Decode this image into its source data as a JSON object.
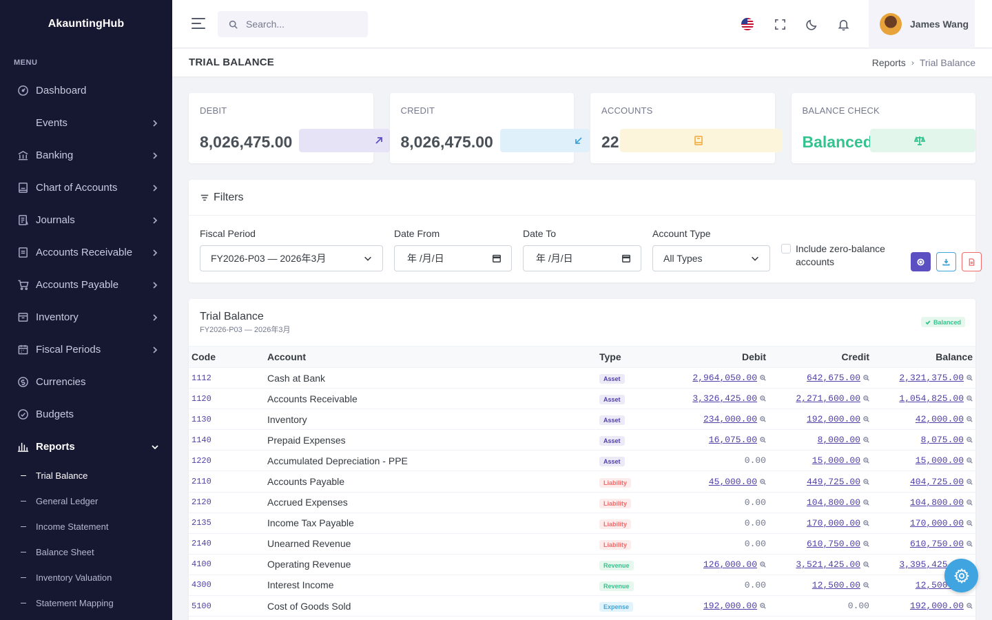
{
  "brand": "AkauntingHub",
  "sidebar": {
    "menu_title": "MENU",
    "items": [
      {
        "label": "Dashboard",
        "icon": "dashboard-icon",
        "has_chevron": false
      },
      {
        "label": "Events",
        "icon": "",
        "has_chevron": true
      },
      {
        "label": "Banking",
        "icon": "bank-icon",
        "has_chevron": true
      },
      {
        "label": "Chart of Accounts",
        "icon": "ledger-icon",
        "has_chevron": true
      },
      {
        "label": "Journals",
        "icon": "journal-icon",
        "has_chevron": true
      },
      {
        "label": "Accounts Receivable",
        "icon": "receivable-icon",
        "has_chevron": true
      },
      {
        "label": "Accounts Payable",
        "icon": "cart-icon",
        "has_chevron": true
      },
      {
        "label": "Inventory",
        "icon": "box-icon",
        "has_chevron": true
      },
      {
        "label": "Fiscal Periods",
        "icon": "calendar-icon",
        "has_chevron": true
      },
      {
        "label": "Currencies",
        "icon": "currency-icon",
        "has_chevron": false
      },
      {
        "label": "Budgets",
        "icon": "budget-icon",
        "has_chevron": false
      },
      {
        "label": "Reports",
        "icon": "bar-chart-icon",
        "has_chevron": true,
        "expanded": true
      }
    ],
    "report_sub_items": [
      "Trial Balance",
      "General Ledger",
      "Income Statement",
      "Balance Sheet",
      "Inventory Valuation",
      "Statement Mapping"
    ],
    "active_sub_item": "Trial Balance"
  },
  "topbar": {
    "search_placeholder": "Search...",
    "user_name": "James Wang",
    "icons": [
      "menu-icon",
      "search-icon",
      "us-flag-icon",
      "fullscreen-icon",
      "moon-icon",
      "bell-icon"
    ]
  },
  "page": {
    "title": "TRIAL BALANCE",
    "breadcrumb": [
      "Reports",
      "Trial Balance"
    ]
  },
  "cards": [
    {
      "label": "DEBIT",
      "value": "8,026,475.00",
      "icon": "arrow-up-right-icon",
      "accent": "#5b4fc2",
      "tint": "#e6e3f7"
    },
    {
      "label": "CREDIT",
      "value": "8,026,475.00",
      "icon": "arrow-down-left-icon",
      "accent": "#3fa4d9",
      "tint": "#e0f0fb"
    },
    {
      "label": "ACCOUNTS",
      "value": "22",
      "icon": "book-icon",
      "accent": "#f1b44c",
      "tint": "#fdf4dc"
    },
    {
      "label": "BALANCE CHECK",
      "value": "Balanced",
      "icon": "scale-icon",
      "accent": "#34c38f",
      "tint": "#e2f6ec"
    }
  ],
  "filters": {
    "title": "Filters",
    "fiscal_period_label": "Fiscal Period",
    "fiscal_period_value": "FY2026-P03 — 2026年3月",
    "date_from_label": "Date From",
    "date_from_value": "年 /月/日",
    "date_to_label": "Date To",
    "date_to_value": "年 /月/日",
    "account_type_label": "Account Type",
    "account_type_value": "All Types",
    "zero_balance_label": "Include zero-balance accounts"
  },
  "trial_balance": {
    "title": "Trial Balance",
    "subtitle": "FY2026-P03 — 2026年3月",
    "badge": "Balanced",
    "columns": [
      "Code",
      "Account",
      "Type",
      "Debit",
      "Credit",
      "Balance"
    ],
    "rows": [
      {
        "code": "1112",
        "account": "Cash at Bank",
        "type": "Asset",
        "debit": "2,964,050.00",
        "credit": "642,675.00",
        "balance": "2,321,375.00"
      },
      {
        "code": "1120",
        "account": "Accounts Receivable",
        "type": "Asset",
        "debit": "3,326,425.00",
        "credit": "2,271,600.00",
        "balance": "1,054,825.00"
      },
      {
        "code": "1130",
        "account": "Inventory",
        "type": "Asset",
        "debit": "234,000.00",
        "credit": "192,000.00",
        "balance": "42,000.00"
      },
      {
        "code": "1140",
        "account": "Prepaid Expenses",
        "type": "Asset",
        "debit": "16,075.00",
        "credit": "8,000.00",
        "balance": "8,075.00"
      },
      {
        "code": "1220",
        "account": "Accumulated Depreciation - PPE",
        "type": "Asset",
        "debit": "0.00",
        "credit": "15,000.00",
        "balance": "15,000.00"
      },
      {
        "code": "2110",
        "account": "Accounts Payable",
        "type": "Liability",
        "debit": "45,000.00",
        "credit": "449,725.00",
        "balance": "404,725.00"
      },
      {
        "code": "2120",
        "account": "Accrued Expenses",
        "type": "Liability",
        "debit": "0.00",
        "credit": "104,800.00",
        "balance": "104,800.00"
      },
      {
        "code": "2135",
        "account": "Income Tax Payable",
        "type": "Liability",
        "debit": "0.00",
        "credit": "170,000.00",
        "balance": "170,000.00"
      },
      {
        "code": "2140",
        "account": "Unearned Revenue",
        "type": "Liability",
        "debit": "0.00",
        "credit": "610,750.00",
        "balance": "610,750.00"
      },
      {
        "code": "4100",
        "account": "Operating Revenue",
        "type": "Revenue",
        "debit": "126,000.00",
        "credit": "3,521,425.00",
        "balance": "3,395,425.00"
      },
      {
        "code": "4300",
        "account": "Interest Income",
        "type": "Revenue",
        "debit": "0.00",
        "credit": "12,500.00",
        "balance": "12,500.00"
      },
      {
        "code": "5100",
        "account": "Cost of Goods Sold",
        "type": "Expense",
        "debit": "192,000.00",
        "credit": "0.00",
        "balance": "192,000.00"
      }
    ]
  }
}
